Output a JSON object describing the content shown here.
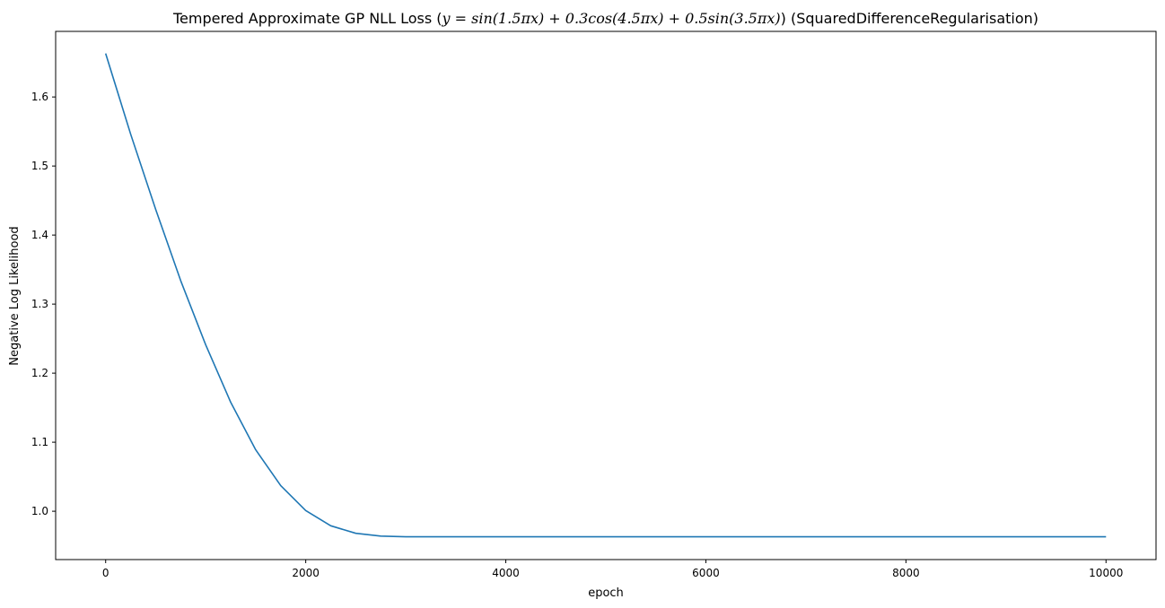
{
  "chart_data": {
    "type": "line",
    "title_prefix": "Tempered Approximate GP NLL Loss (",
    "title_math": "y = sin(1.5πx) + 0.3cos(4.5πx) + 0.5sin(3.5πx)",
    "title_suffix": ") (SquaredDifferenceRegularisation)",
    "xlabel": "epoch",
    "ylabel": "Negative Log Likelihood",
    "xlim": [
      -500,
      10500
    ],
    "ylim": [
      0.93,
      1.695
    ],
    "xticks": [
      0,
      2000,
      4000,
      6000,
      8000,
      10000
    ],
    "yticks": [
      1.0,
      1.1,
      1.2,
      1.3,
      1.4,
      1.5,
      1.6
    ],
    "ytick_labels": [
      "1.0",
      "1.1",
      "1.2",
      "1.3",
      "1.4",
      "1.5",
      "1.6"
    ],
    "grid": false,
    "line_color": "#1f77b4",
    "series": [
      {
        "x": [
          0,
          250,
          500,
          750,
          1000,
          1250,
          1500,
          1750,
          2000,
          2250,
          2500,
          2750,
          3000,
          3250,
          3500,
          3750,
          4000,
          5000,
          6000,
          7000,
          8000,
          9000,
          10000
        ],
        "values": [
          1.663,
          1.546,
          1.437,
          1.334,
          1.241,
          1.158,
          1.089,
          1.037,
          1.001,
          0.979,
          0.968,
          0.964,
          0.963,
          0.963,
          0.963,
          0.963,
          0.963,
          0.963,
          0.963,
          0.963,
          0.963,
          0.963,
          0.963
        ]
      }
    ]
  }
}
